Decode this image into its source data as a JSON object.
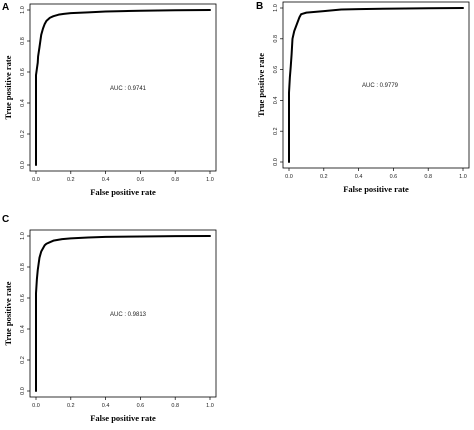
{
  "chart_data": [
    {
      "type": "line",
      "panel": "A",
      "xlabel": "False positive rate",
      "ylabel": "True positive rate",
      "xlim": [
        0,
        1
      ],
      "ylim": [
        0,
        1
      ],
      "xticks": [
        "0.0",
        "0.2",
        "0.4",
        "0.6",
        "0.8",
        "1.0"
      ],
      "yticks": [
        "0.0",
        "0.2",
        "0.4",
        "0.6",
        "0.8",
        "1.0"
      ],
      "annotation": "AUC : 0.9741",
      "series": [
        {
          "x": [
            0,
            0,
            0.005,
            0.01,
            0.012,
            0.02,
            0.025,
            0.03,
            0.04,
            0.05,
            0.06,
            0.08,
            0.1,
            0.13,
            0.16,
            0.2,
            0.3,
            0.4,
            0.5,
            0.6,
            0.8,
            1.0
          ],
          "y": [
            0,
            0.58,
            0.62,
            0.66,
            0.7,
            0.76,
            0.8,
            0.84,
            0.88,
            0.91,
            0.93,
            0.95,
            0.96,
            0.97,
            0.975,
            0.98,
            0.985,
            0.99,
            0.993,
            0.995,
            0.998,
            1.0
          ]
        }
      ]
    },
    {
      "type": "line",
      "panel": "B",
      "xlabel": "False positive rate",
      "ylabel": "True positive rate",
      "xlim": [
        0,
        1
      ],
      "ylim": [
        0,
        1
      ],
      "xticks": [
        "0.0",
        "0.2",
        "0.4",
        "0.6",
        "0.8",
        "1.0"
      ],
      "yticks": [
        "0.0",
        "0.2",
        "0.4",
        "0.6",
        "0.8",
        "1.0"
      ],
      "annotation": "AUC : 0.9779",
      "series": [
        {
          "x": [
            0,
            0,
            0.005,
            0.01,
            0.015,
            0.02,
            0.03,
            0.04,
            0.05,
            0.06,
            0.07,
            0.1,
            0.15,
            0.2,
            0.3,
            0.4,
            0.6,
            0.8,
            1.0
          ],
          "y": [
            0,
            0.45,
            0.55,
            0.62,
            0.7,
            0.8,
            0.85,
            0.88,
            0.91,
            0.94,
            0.96,
            0.97,
            0.975,
            0.98,
            0.99,
            0.993,
            0.996,
            0.998,
            1.0
          ]
        }
      ]
    },
    {
      "type": "line",
      "panel": "C",
      "xlabel": "False positive rate",
      "ylabel": "True positive rate",
      "xlim": [
        0,
        1
      ],
      "ylim": [
        0,
        1
      ],
      "xticks": [
        "0.0",
        "0.2",
        "0.4",
        "0.6",
        "0.8",
        "1.0"
      ],
      "yticks": [
        "0.0",
        "0.2",
        "0.4",
        "0.6",
        "0.8",
        "1.0"
      ],
      "annotation": "AUC : 0.9813",
      "series": [
        {
          "x": [
            0,
            0,
            0.005,
            0.01,
            0.015,
            0.02,
            0.03,
            0.04,
            0.05,
            0.06,
            0.08,
            0.1,
            0.15,
            0.2,
            0.3,
            0.4,
            0.6,
            0.8,
            1.0
          ],
          "y": [
            0,
            0.63,
            0.72,
            0.78,
            0.82,
            0.86,
            0.9,
            0.92,
            0.94,
            0.95,
            0.96,
            0.97,
            0.98,
            0.985,
            0.99,
            0.994,
            0.997,
            0.999,
            1.0
          ]
        }
      ]
    }
  ]
}
